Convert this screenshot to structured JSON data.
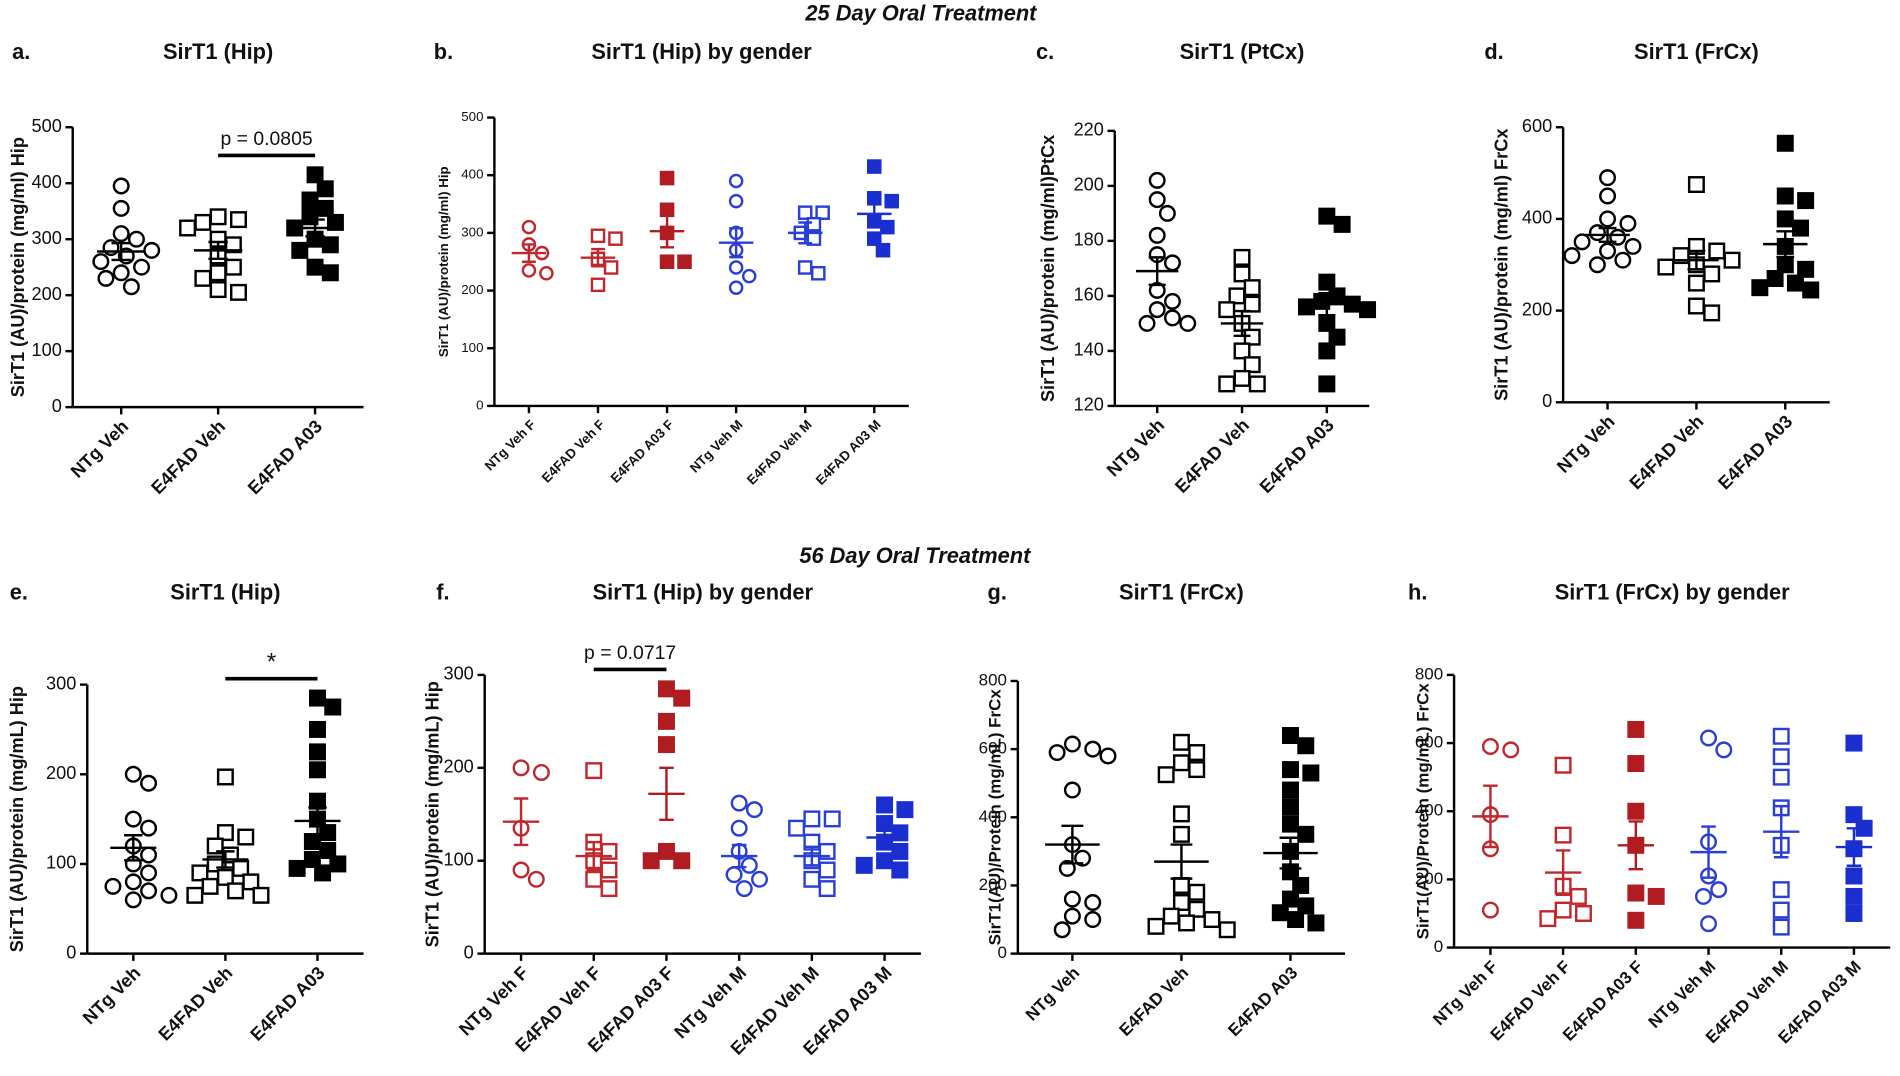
{
  "headers": [
    "25 Day Oral Treatment",
    "56 Day Oral Treatment"
  ],
  "chart_data": [
    {
      "type": "dotplot",
      "label": "a.",
      "title": "SirT1 (Hip)",
      "ylabel": "SirT1 (AU)/protein (mg/ml) Hip",
      "ylim": [
        0,
        500
      ],
      "yticks": [
        0,
        100,
        200,
        300,
        400,
        500
      ],
      "annotations": [
        {
          "text": "p = 0.0805",
          "between": [
            "E4FAD Veh",
            "E4FAD A03"
          ]
        }
      ],
      "series": [
        {
          "name": "NTg Veh",
          "color": "#000000",
          "marker": "circle",
          "filled": false,
          "values": [
            395,
            355,
            310,
            300,
            285,
            280,
            270,
            260,
            250,
            240,
            230,
            215
          ],
          "mean": 278,
          "sem": 15
        },
        {
          "name": "E4FAD Veh",
          "color": "#000000",
          "marker": "square",
          "filled": false,
          "values": [
            340,
            335,
            330,
            320,
            300,
            290,
            270,
            250,
            240,
            230,
            210,
            205
          ],
          "mean": 280,
          "sem": 15
        },
        {
          "name": "E4FAD A03",
          "color": "#000000",
          "marker": "square",
          "filled": true,
          "values": [
            415,
            390,
            370,
            355,
            340,
            330,
            320,
            300,
            290,
            280,
            250,
            240
          ],
          "mean": 320,
          "sem": 15
        }
      ]
    },
    {
      "type": "dotplot",
      "label": "b.",
      "title": "SirT1 (Hip) by gender",
      "ylabel": "SirT1 (AU)/protein (mg/ml) Hip",
      "ylim": [
        0,
        500
      ],
      "yticks": [
        0,
        100,
        200,
        300,
        400,
        500
      ],
      "annotations": [],
      "series": [
        {
          "name": "NTg Veh F",
          "color": "#c0282d",
          "marker": "circle",
          "filled": false,
          "values": [
            310,
            280,
            265,
            235,
            230
          ],
          "mean": 265,
          "sem": 15
        },
        {
          "name": "E4FAD Veh F",
          "color": "#c0282d",
          "marker": "square",
          "filled": false,
          "values": [
            295,
            290,
            255,
            240,
            210
          ],
          "mean": 257,
          "sem": 15
        },
        {
          "name": "E4FAD A03 F",
          "color": "#b01c20",
          "marker": "square",
          "filled": true,
          "values": [
            395,
            340,
            300,
            250,
            250
          ],
          "mean": 303,
          "sem": 28
        },
        {
          "name": "NTg Veh M",
          "color": "#2a3fd8",
          "marker": "circle",
          "filled": false,
          "values": [
            390,
            355,
            300,
            270,
            240,
            225,
            205
          ],
          "mean": 283,
          "sem": 25
        },
        {
          "name": "E4FAD Veh M",
          "color": "#2a3fd8",
          "marker": "square",
          "filled": false,
          "values": [
            335,
            335,
            315,
            300,
            290,
            240,
            230
          ],
          "mean": 300,
          "sem": 18
        },
        {
          "name": "E4FAD A03 M",
          "color": "#1b2fd0",
          "marker": "square",
          "filled": true,
          "values": [
            415,
            360,
            355,
            320,
            310,
            290,
            270
          ],
          "mean": 333,
          "sem": 18
        }
      ]
    },
    {
      "type": "dotplot",
      "label": "c.",
      "title": "SirT1 (PtCx)",
      "ylabel": "SirT1 (AU)/protein (mg/ml)PtCx",
      "ylim": [
        120,
        220
      ],
      "yticks": [
        120,
        140,
        160,
        180,
        200,
        220
      ],
      "annotations": [],
      "series": [
        {
          "name": "NTg Veh",
          "color": "#000000",
          "marker": "circle",
          "filled": false,
          "values": [
            202,
            195,
            190,
            182,
            175,
            172,
            162,
            158,
            155,
            152,
            150,
            150
          ],
          "mean": 169,
          "sem": 5
        },
        {
          "name": "E4FAD Veh",
          "color": "#000000",
          "marker": "square",
          "filled": false,
          "values": [
            174,
            168,
            163,
            160,
            157,
            155,
            150,
            145,
            140,
            135,
            130,
            128,
            128
          ],
          "mean": 150,
          "sem": 4.5
        },
        {
          "name": "E4FAD A03",
          "color": "#000000",
          "marker": "square",
          "filled": true,
          "values": [
            189,
            186,
            165,
            160,
            158,
            157,
            156,
            155,
            150,
            145,
            140,
            128
          ],
          "mean": 157,
          "sem": 4
        }
      ]
    },
    {
      "type": "dotplot",
      "label": "d.",
      "title": "SirT1 (FrCx)",
      "ylabel": "SirT1 (AU)/protein (mg/ml) FrCx",
      "ylim": [
        0,
        600
      ],
      "yticks": [
        0,
        200,
        400,
        600
      ],
      "annotations": [],
      "series": [
        {
          "name": "NTg Veh",
          "color": "#000000",
          "marker": "circle",
          "filled": false,
          "values": [
            490,
            450,
            400,
            390,
            370,
            360,
            350,
            340,
            330,
            320,
            310,
            300
          ],
          "mean": 365,
          "sem": 15
        },
        {
          "name": "E4FAD Veh",
          "color": "#000000",
          "marker": "square",
          "filled": false,
          "values": [
            475,
            340,
            330,
            320,
            310,
            300,
            295,
            280,
            260,
            210,
            195
          ],
          "mean": 310,
          "sem": 20
        },
        {
          "name": "E4FAD A03",
          "color": "#000000",
          "marker": "square",
          "filled": true,
          "values": [
            565,
            450,
            440,
            400,
            380,
            340,
            300,
            290,
            270,
            260,
            250,
            245
          ],
          "mean": 345,
          "sem": 28
        }
      ]
    },
    {
      "type": "dotplot",
      "label": "e.",
      "title": "SirT1  (Hip)",
      "ylabel": "SirT1 (AU)/protein (mg/mL) Hip",
      "ylim": [
        0,
        300
      ],
      "yticks": [
        0,
        100,
        200,
        300
      ],
      "annotations": [
        {
          "text": "*",
          "between": [
            "E4FAD Veh",
            "E4FAD A03"
          ]
        }
      ],
      "series": [
        {
          "name": "NTg Veh",
          "color": "#000000",
          "marker": "circle",
          "filled": false,
          "values": [
            200,
            190,
            150,
            140,
            120,
            110,
            100,
            90,
            80,
            75,
            70,
            65,
            60
          ],
          "mean": 118,
          "sem": 14
        },
        {
          "name": "E4FAD Veh",
          "color": "#000000",
          "marker": "square",
          "filled": false,
          "values": [
            197,
            135,
            130,
            120,
            110,
            100,
            95,
            90,
            85,
            80,
            75,
            70,
            65,
            65
          ],
          "mean": 105,
          "sem": 9
        },
        {
          "name": "E4FAD A03",
          "color": "#000000",
          "marker": "square",
          "filled": true,
          "values": [
            285,
            275,
            250,
            225,
            205,
            170,
            150,
            135,
            125,
            115,
            105,
            100,
            95,
            90
          ],
          "mean": 148,
          "sem": 15
        }
      ]
    },
    {
      "type": "dotplot",
      "label": "f.",
      "title": "SirT1 (Hip) by gender",
      "ylabel": "SirT1 (AU)/protein (mg/mL) Hip",
      "ylim": [
        0,
        300
      ],
      "yticks": [
        0,
        100,
        200,
        300
      ],
      "annotations": [
        {
          "text": "p = 0.0717",
          "between": [
            "E4FAD Veh F",
            "E4FAD A03 F"
          ]
        }
      ],
      "series": [
        {
          "name": "NTg Veh F",
          "color": "#c0282d",
          "marker": "circle",
          "filled": false,
          "values": [
            200,
            195,
            135,
            90,
            80
          ],
          "mean": 142,
          "sem": 25
        },
        {
          "name": "E4FAD Veh F",
          "color": "#c0282d",
          "marker": "square",
          "filled": false,
          "values": [
            197,
            120,
            110,
            100,
            90,
            80,
            70
          ],
          "mean": 105,
          "sem": 15
        },
        {
          "name": "E4FAD A03 F",
          "color": "#b01c20",
          "marker": "square",
          "filled": true,
          "values": [
            285,
            275,
            250,
            225,
            110,
            100,
            100
          ],
          "mean": 172,
          "sem": 28
        },
        {
          "name": "NTg Veh M",
          "color": "#2a3fd8",
          "marker": "circle",
          "filled": false,
          "values": [
            162,
            155,
            135,
            110,
            95,
            85,
            80,
            70
          ],
          "mean": 105,
          "sem": 12
        },
        {
          "name": "E4FAD Veh M",
          "color": "#2a3fd8",
          "marker": "square",
          "filled": false,
          "values": [
            145,
            145,
            135,
            120,
            110,
            100,
            90,
            80,
            70
          ],
          "mean": 105,
          "sem": 10
        },
        {
          "name": "E4FAD A03 M",
          "color": "#1b2fd0",
          "marker": "square",
          "filled": true,
          "values": [
            160,
            155,
            140,
            130,
            120,
            110,
            100,
            95,
            90
          ],
          "mean": 125,
          "sem": 10
        }
      ]
    },
    {
      "type": "dotplot",
      "label": "g.",
      "title": "SirT1  (FrCx)",
      "ylabel": "SirT1(AU)/Protein (mg/mL) FrCx",
      "ylim": [
        0,
        800
      ],
      "yticks": [
        0,
        200,
        400,
        600,
        800
      ],
      "annotations": [],
      "series": [
        {
          "name": "NTg Veh",
          "color": "#000000",
          "marker": "circle",
          "filled": false,
          "values": [
            615,
            600,
            590,
            580,
            480,
            320,
            280,
            250,
            160,
            150,
            110,
            100,
            70
          ],
          "mean": 320,
          "sem": 55
        },
        {
          "name": "E4FAD Veh",
          "color": "#000000",
          "marker": "square",
          "filled": false,
          "values": [
            620,
            590,
            560,
            540,
            525,
            410,
            350,
            200,
            180,
            150,
            130,
            110,
            100,
            90,
            80,
            70
          ],
          "mean": 270,
          "sem": 50
        },
        {
          "name": "E4FAD A03",
          "color": "#000000",
          "marker": "square",
          "filled": true,
          "values": [
            640,
            610,
            540,
            530,
            480,
            430,
            380,
            350,
            300,
            240,
            200,
            160,
            140,
            120,
            100,
            90
          ],
          "mean": 295,
          "sem": 45
        }
      ]
    },
    {
      "type": "dotplot",
      "label": "h.",
      "title": "SirT1 (FrCx) by gender",
      "ylabel": "SirT1(AU)/Protein (mg/mL) FrCx",
      "ylim": [
        0,
        800
      ],
      "yticks": [
        0,
        200,
        400,
        600,
        800
      ],
      "annotations": [],
      "series": [
        {
          "name": "NTg Veh F",
          "color": "#c0282d",
          "marker": "circle",
          "filled": false,
          "values": [
            590,
            580,
            390,
            290,
            110
          ],
          "mean": 385,
          "sem": 90
        },
        {
          "name": "E4FAD Veh F",
          "color": "#c0282d",
          "marker": "square",
          "filled": false,
          "values": [
            535,
            330,
            180,
            150,
            110,
            100,
            85
          ],
          "mean": 220,
          "sem": 65
        },
        {
          "name": "E4FAD A03 F",
          "color": "#b01c20",
          "marker": "square",
          "filled": true,
          "values": [
            640,
            540,
            400,
            300,
            160,
            150,
            80
          ],
          "mean": 300,
          "sem": 70
        },
        {
          "name": "NTg Veh M",
          "color": "#2a3fd8",
          "marker": "circle",
          "filled": false,
          "values": [
            615,
            580,
            310,
            210,
            170,
            150,
            70
          ],
          "mean": 280,
          "sem": 75
        },
        {
          "name": "E4FAD Veh M",
          "color": "#2a3fd8",
          "marker": "square",
          "filled": false,
          "values": [
            620,
            560,
            500,
            410,
            300,
            170,
            110,
            60
          ],
          "mean": 340,
          "sem": 75
        },
        {
          "name": "E4FAD A03 M",
          "color": "#1b2fd0",
          "marker": "square",
          "filled": true,
          "values": [
            600,
            390,
            350,
            290,
            210,
            150,
            100
          ],
          "mean": 295,
          "sem": 55
        }
      ]
    }
  ]
}
